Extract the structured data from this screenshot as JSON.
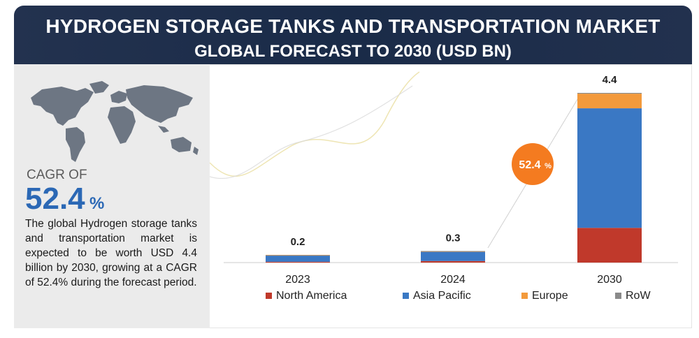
{
  "header": {
    "title_line1": "HYDROGEN STORAGE TANKS AND TRANSPORTATION MARKET",
    "title_line2": "GLOBAL FORECAST TO 2030 (USD BN)"
  },
  "sidebar": {
    "cagr_label": "CAGR OF",
    "cagr_value": "52.4",
    "cagr_symbol": "%",
    "description": "The global Hydrogen storage tanks and transportation market is expected to be worth USD 4.4 billion by 2030, growing at a CAGR of 52.4% during the forecast period."
  },
  "chart_data": {
    "type": "bar",
    "stacked": true,
    "title": "",
    "categories": [
      "2023",
      "2024",
      "2030"
    ],
    "totals_labels": [
      "0.2",
      "0.3",
      "4.4"
    ],
    "totals": [
      0.2,
      0.3,
      4.4
    ],
    "series": [
      {
        "name": "North America",
        "color": "#c0392b",
        "values": [
          0.02,
          0.04,
          0.9
        ]
      },
      {
        "name": "Asia Pacific",
        "color": "#3a78c4",
        "values": [
          0.16,
          0.24,
          3.1
        ]
      },
      {
        "name": "Europe",
        "color": "#f39a3c",
        "values": [
          0.015,
          0.015,
          0.38
        ]
      },
      {
        "name": "RoW",
        "color": "#8a8a8a",
        "values": [
          0.005,
          0.005,
          0.02
        ]
      }
    ],
    "cagr_badge": {
      "value": "52.4",
      "symbol": "%",
      "color": "#f47b20"
    },
    "ylim": [
      0,
      4.4
    ],
    "grid": false,
    "legend_position": "bottom"
  }
}
